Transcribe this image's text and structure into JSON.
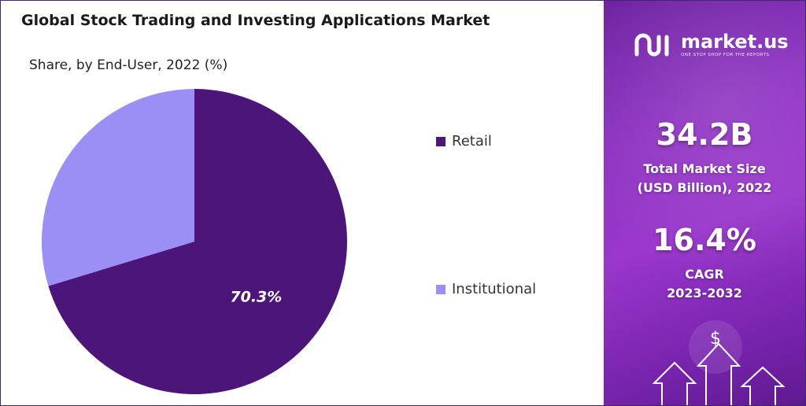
{
  "chart_data": {
    "type": "pie",
    "title": "Global Stock Trading and Investing Applications Market",
    "subtitle": "Share, by End-User, 2022 (%)",
    "slices": [
      {
        "label": "Retail",
        "value": 70.3,
        "color": "#4b1579",
        "data_label": "70.3%"
      },
      {
        "label": "Institutional",
        "value": 29.7,
        "color": "#9a8ff5",
        "data_label": ""
      }
    ],
    "legend_position": "right"
  },
  "brand": {
    "name": "market.us",
    "tagline": "ONE STOP SHOP FOR THE REPORTS"
  },
  "stats": {
    "market_size_value": "34.2B",
    "market_size_label_1": "Total Market Size",
    "market_size_label_2": "(USD Billion), 2022",
    "cagr_value": "16.4%",
    "cagr_label_1": "CAGR",
    "cagr_label_2": "2023-2032"
  },
  "decor": {
    "currency_symbol": "$",
    "icon": "arrow-up-icon"
  }
}
